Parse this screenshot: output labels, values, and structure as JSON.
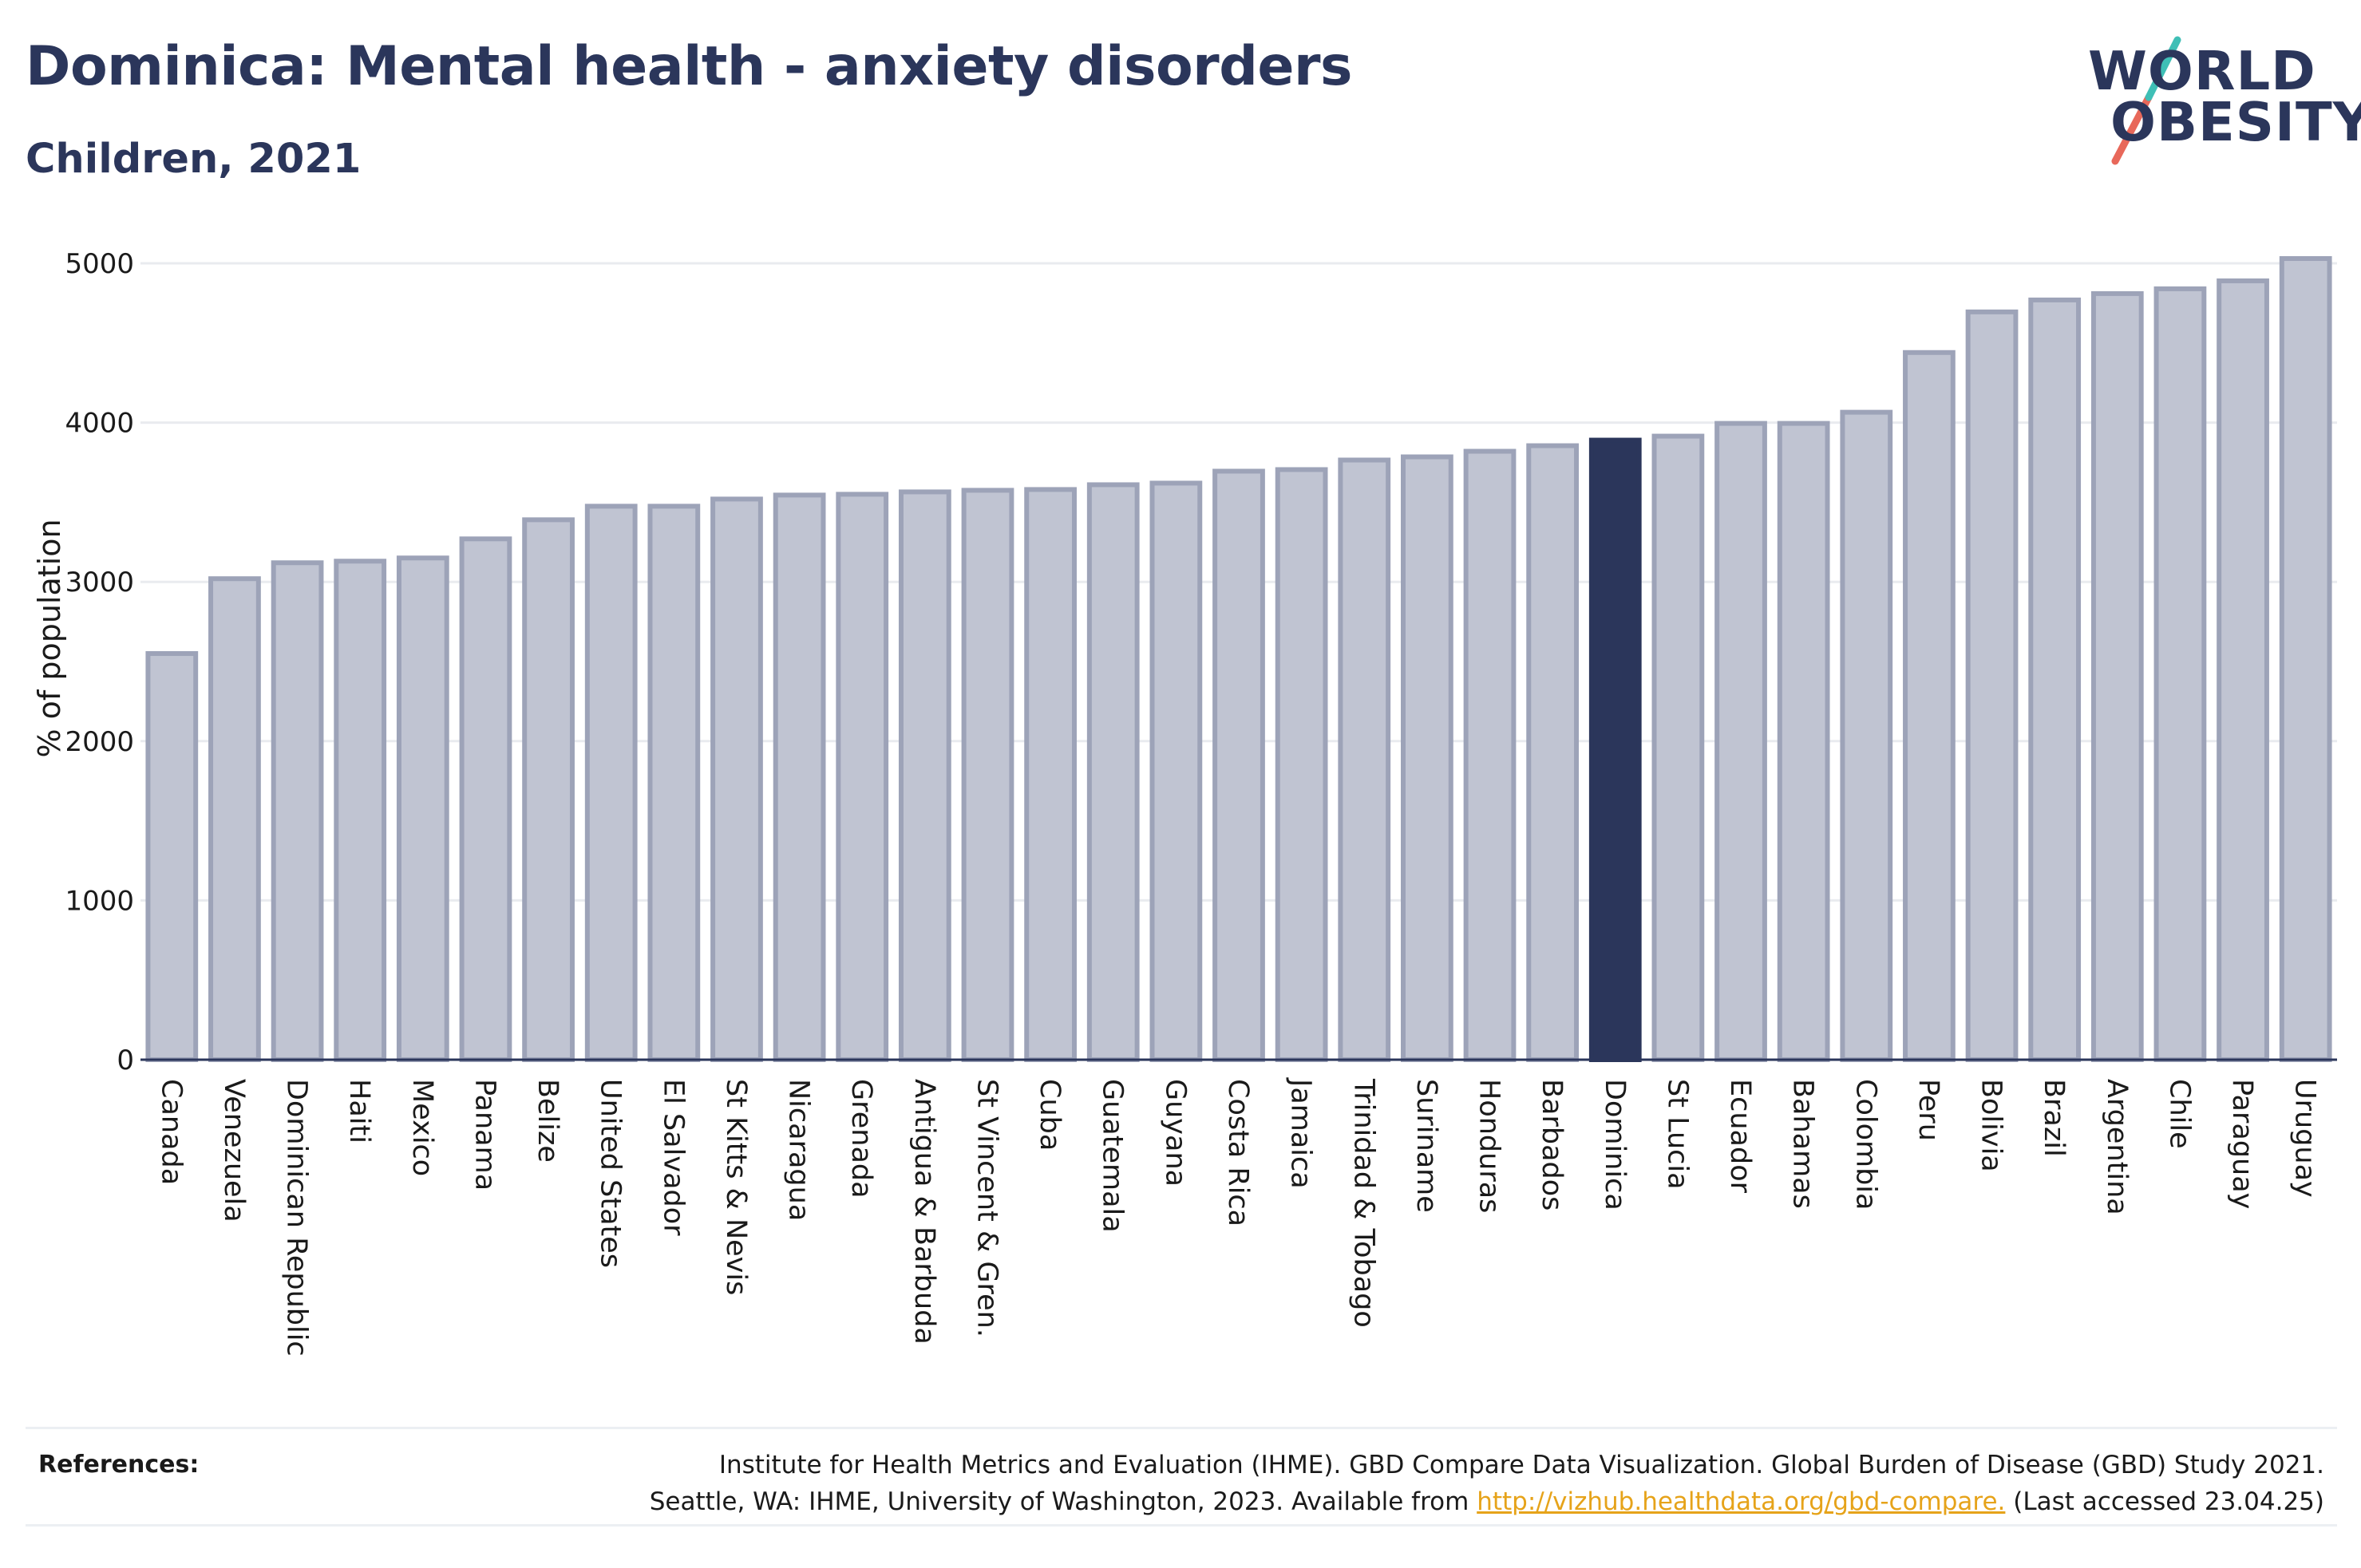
{
  "header": {
    "title": "Dominica: Mental health - anxiety disorders",
    "subtitle": "Children, 2021"
  },
  "logo": {
    "line1": "WORLD",
    "line2": "OBESITY",
    "accent_colors": [
      "#3fbfb6",
      "#e8685a"
    ]
  },
  "colors": {
    "bar": "#c0c4d2",
    "bar_border": "#9da3b8",
    "highlight": "#2b365b",
    "gridline": "#e9ebef",
    "axis": "#2b365b"
  },
  "references": {
    "label": "References:",
    "line1": "Institute for Health Metrics and Evaluation (IHME). GBD Compare Data Visualization. Global Burden of Disease (GBD) Study 2021.",
    "line2_prefix": "Seattle, WA: IHME, University of Washington, 2023. Available from ",
    "link": "http://vizhub.healthdata.org/gbd-compare.",
    "line2_suffix": " (Last accessed 23.04.25)"
  },
  "chart_data": {
    "type": "bar",
    "ylabel": "% of population",
    "ylim": [
      0,
      5000
    ],
    "yticks": [
      0,
      1000,
      2000,
      3000,
      4000,
      5000
    ],
    "grid": true,
    "highlight": "Dominica",
    "categories": [
      "Canada",
      "Venezuela",
      "Dominican Republic",
      "Haiti",
      "Mexico",
      "Panama",
      "Belize",
      "United States",
      "El Salvador",
      "St Kitts & Nevis",
      "Nicaragua",
      "Grenada",
      "Antigua & Barbuda",
      "St Vincent & Gren.",
      "Cuba",
      "Guatemala",
      "Guyana",
      "Costa Rica",
      "Jamaica",
      "Trinidad & Tobago",
      "Suriname",
      "Honduras",
      "Barbados",
      "Dominica",
      "St Lucia",
      "Ecuador",
      "Bahamas",
      "Colombia",
      "Peru",
      "Bolivia",
      "Brazil",
      "Argentina",
      "Chile",
      "Paraguay",
      "Uruguay"
    ],
    "values": [
      2550,
      3020,
      3120,
      3130,
      3150,
      3270,
      3390,
      3475,
      3475,
      3520,
      3545,
      3550,
      3565,
      3575,
      3580,
      3610,
      3620,
      3695,
      3705,
      3765,
      3785,
      3820,
      3855,
      3890,
      3915,
      3995,
      3995,
      4065,
      4440,
      4695,
      4770,
      4810,
      4840,
      4890,
      5030
    ]
  }
}
